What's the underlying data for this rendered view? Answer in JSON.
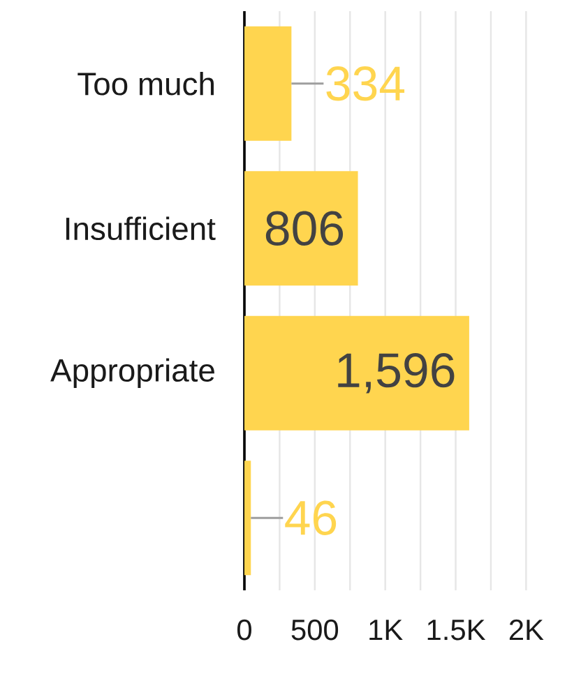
{
  "chart_data": {
    "type": "bar",
    "orientation": "horizontal",
    "categories": [
      "Too much",
      "Insufficient",
      "Appropriate",
      null
    ],
    "values": [
      334,
      806,
      1596,
      46
    ],
    "color": "#ffd54f",
    "value_labels": [
      "334",
      "806",
      "1,596",
      "46"
    ],
    "xlim": [
      0,
      2000
    ],
    "xticks": [
      0,
      {
        "value": 250,
        "label": null
      },
      500,
      {
        "value": 750,
        "label": null
      },
      {
        "value": 1000,
        "label": "1K"
      },
      {
        "value": 1250,
        "label": null
      },
      {
        "value": 1500,
        "label": "1.5K"
      },
      {
        "value": 1750,
        "label": null
      },
      {
        "value": 2000,
        "label": "2K"
      }
    ],
    "grid": "x"
  }
}
